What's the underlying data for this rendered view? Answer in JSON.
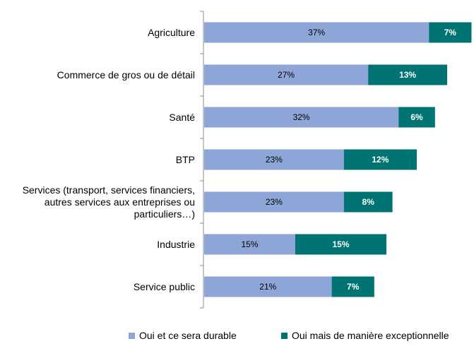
{
  "chart_data": {
    "type": "bar",
    "orientation": "horizontal",
    "stacked": true,
    "categories": [
      "Agriculture",
      "Commerce de gros ou de détail",
      "Santé",
      "BTP",
      "Services (transport, services financiers, autres services aux entreprises ou particuliers…)",
      "Industrie",
      "Service public"
    ],
    "category_lines": [
      [
        "Agriculture"
      ],
      [
        "Commerce de gros ou de détail"
      ],
      [
        "Santé"
      ],
      [
        "BTP"
      ],
      [
        "Services (transport, services financiers,",
        "autres services aux entreprises ou",
        "particuliers…)"
      ],
      [
        "Industrie"
      ],
      [
        "Service public"
      ]
    ],
    "series": [
      {
        "name": "Oui et ce sera durable",
        "color": "#8EA5D8",
        "label_color": "#000000",
        "values": [
          37,
          27,
          32,
          23,
          23,
          15,
          21
        ],
        "labels": [
          "37%",
          "27%",
          "32%",
          "23%",
          "23%",
          "15%",
          "21%"
        ]
      },
      {
        "name": "Oui mais de manière exceptionnelle",
        "color": "#007373",
        "label_color": "#ffffff",
        "values": [
          7,
          13,
          6,
          12,
          8,
          15,
          7
        ],
        "labels": [
          "7%",
          "13%",
          "6%",
          "12%",
          "8%",
          "15%",
          "7%"
        ]
      }
    ],
    "xlim": [
      0,
      50
    ],
    "grid": false,
    "legend_position": "bottom"
  },
  "legend": {
    "item1_label": "Oui et ce sera durable",
    "item1_color": "#8EA5D8",
    "item2_label": "Oui mais de manière exceptionnelle",
    "item2_color": "#007373"
  }
}
